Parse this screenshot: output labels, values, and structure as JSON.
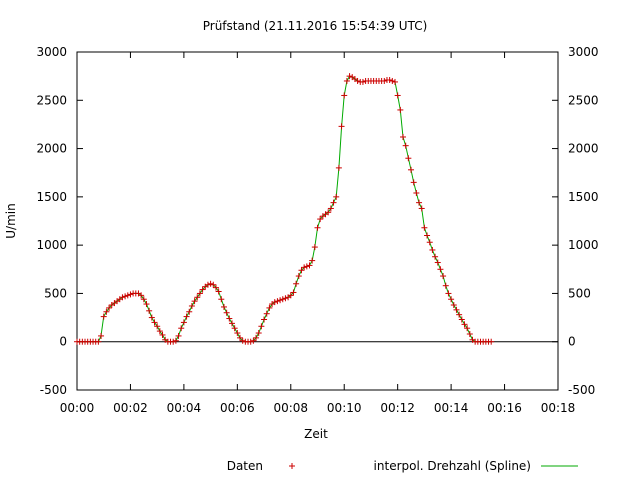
{
  "chart_data": {
    "type": "line",
    "title": "Prüfstand (21.11.2016 15:54:39 UTC)",
    "xlabel": "Zeit",
    "ylabel": "U/min",
    "xlim": [
      0,
      18
    ],
    "ylim": [
      -500,
      3000
    ],
    "x_unit": "minutes",
    "x_ticks": [
      {
        "value": 0,
        "label": "00:00"
      },
      {
        "value": 2,
        "label": "00:02"
      },
      {
        "value": 4,
        "label": "00:04"
      },
      {
        "value": 6,
        "label": "00:06"
      },
      {
        "value": 8,
        "label": "00:08"
      },
      {
        "value": 10,
        "label": "00:10"
      },
      {
        "value": 12,
        "label": "00:12"
      },
      {
        "value": 14,
        "label": "00:14"
      },
      {
        "value": 16,
        "label": "00:16"
      },
      {
        "value": 18,
        "label": "00:18"
      }
    ],
    "y_ticks": [
      {
        "value": -500,
        "label": "-500"
      },
      {
        "value": 0,
        "label": "0"
      },
      {
        "value": 500,
        "label": "500"
      },
      {
        "value": 1000,
        "label": "1000"
      },
      {
        "value": 1500,
        "label": "1500"
      },
      {
        "value": 2000,
        "label": "2000"
      },
      {
        "value": 2500,
        "label": "2500"
      },
      {
        "value": 3000,
        "label": "3000"
      }
    ],
    "grid": false,
    "zero_line": true,
    "legend_position": "bottom",
    "series": [
      {
        "name": "Daten",
        "kind": "points",
        "marker": "+",
        "color": "#cc0000",
        "points": [
          [
            0.0,
            0
          ],
          [
            0.1,
            0
          ],
          [
            0.2,
            0
          ],
          [
            0.3,
            0
          ],
          [
            0.4,
            0
          ],
          [
            0.5,
            0
          ],
          [
            0.6,
            0
          ],
          [
            0.7,
            0
          ],
          [
            0.8,
            0
          ],
          [
            0.9,
            60
          ],
          [
            1.0,
            260
          ],
          [
            1.1,
            310
          ],
          [
            1.2,
            350
          ],
          [
            1.3,
            380
          ],
          [
            1.4,
            400
          ],
          [
            1.5,
            420
          ],
          [
            1.6,
            440
          ],
          [
            1.7,
            460
          ],
          [
            1.8,
            470
          ],
          [
            1.9,
            480
          ],
          [
            2.0,
            490
          ],
          [
            2.1,
            500
          ],
          [
            2.2,
            500
          ],
          [
            2.3,
            500
          ],
          [
            2.4,
            480
          ],
          [
            2.5,
            440
          ],
          [
            2.6,
            390
          ],
          [
            2.7,
            320
          ],
          [
            2.8,
            250
          ],
          [
            2.9,
            200
          ],
          [
            3.0,
            160
          ],
          [
            3.1,
            110
          ],
          [
            3.2,
            70
          ],
          [
            3.3,
            20
          ],
          [
            3.4,
            0
          ],
          [
            3.5,
            0
          ],
          [
            3.6,
            0
          ],
          [
            3.7,
            10
          ],
          [
            3.8,
            60
          ],
          [
            3.9,
            140
          ],
          [
            4.0,
            200
          ],
          [
            4.1,
            260
          ],
          [
            4.2,
            310
          ],
          [
            4.3,
            370
          ],
          [
            4.4,
            420
          ],
          [
            4.5,
            460
          ],
          [
            4.6,
            500
          ],
          [
            4.7,
            540
          ],
          [
            4.8,
            570
          ],
          [
            4.9,
            590
          ],
          [
            5.0,
            600
          ],
          [
            5.1,
            590
          ],
          [
            5.2,
            560
          ],
          [
            5.3,
            520
          ],
          [
            5.4,
            440
          ],
          [
            5.5,
            360
          ],
          [
            5.6,
            300
          ],
          [
            5.7,
            240
          ],
          [
            5.8,
            190
          ],
          [
            5.9,
            140
          ],
          [
            6.0,
            90
          ],
          [
            6.1,
            40
          ],
          [
            6.2,
            10
          ],
          [
            6.3,
            0
          ],
          [
            6.4,
            0
          ],
          [
            6.5,
            0
          ],
          [
            6.6,
            10
          ],
          [
            6.7,
            40
          ],
          [
            6.8,
            90
          ],
          [
            6.9,
            160
          ],
          [
            7.0,
            230
          ],
          [
            7.1,
            290
          ],
          [
            7.2,
            350
          ],
          [
            7.3,
            390
          ],
          [
            7.4,
            410
          ],
          [
            7.5,
            420
          ],
          [
            7.6,
            430
          ],
          [
            7.7,
            440
          ],
          [
            7.8,
            450
          ],
          [
            7.9,
            460
          ],
          [
            8.0,
            480
          ],
          [
            8.1,
            510
          ],
          [
            8.2,
            600
          ],
          [
            8.3,
            680
          ],
          [
            8.4,
            740
          ],
          [
            8.5,
            770
          ],
          [
            8.6,
            780
          ],
          [
            8.7,
            790
          ],
          [
            8.8,
            840
          ],
          [
            8.9,
            980
          ],
          [
            9.0,
            1180
          ],
          [
            9.1,
            1270
          ],
          [
            9.2,
            1300
          ],
          [
            9.3,
            1320
          ],
          [
            9.4,
            1340
          ],
          [
            9.5,
            1380
          ],
          [
            9.6,
            1440
          ],
          [
            9.7,
            1500
          ],
          [
            9.8,
            1800
          ],
          [
            9.9,
            2230
          ],
          [
            10.0,
            2550
          ],
          [
            10.1,
            2700
          ],
          [
            10.2,
            2750
          ],
          [
            10.3,
            2740
          ],
          [
            10.4,
            2720
          ],
          [
            10.5,
            2700
          ],
          [
            10.6,
            2690
          ],
          [
            10.7,
            2690
          ],
          [
            10.8,
            2700
          ],
          [
            10.9,
            2700
          ],
          [
            11.0,
            2700
          ],
          [
            11.1,
            2700
          ],
          [
            11.2,
            2700
          ],
          [
            11.3,
            2700
          ],
          [
            11.4,
            2700
          ],
          [
            11.5,
            2700
          ],
          [
            11.6,
            2710
          ],
          [
            11.7,
            2710
          ],
          [
            11.8,
            2700
          ],
          [
            11.9,
            2690
          ],
          [
            12.0,
            2550
          ],
          [
            12.1,
            2400
          ],
          [
            12.2,
            2120
          ],
          [
            12.3,
            2030
          ],
          [
            12.4,
            1900
          ],
          [
            12.5,
            1780
          ],
          [
            12.6,
            1650
          ],
          [
            12.7,
            1540
          ],
          [
            12.8,
            1440
          ],
          [
            12.9,
            1380
          ],
          [
            13.0,
            1180
          ],
          [
            13.1,
            1100
          ],
          [
            13.2,
            1030
          ],
          [
            13.3,
            950
          ],
          [
            13.4,
            880
          ],
          [
            13.5,
            820
          ],
          [
            13.6,
            750
          ],
          [
            13.7,
            680
          ],
          [
            13.8,
            580
          ],
          [
            13.9,
            500
          ],
          [
            14.0,
            440
          ],
          [
            14.1,
            380
          ],
          [
            14.2,
            330
          ],
          [
            14.3,
            280
          ],
          [
            14.4,
            230
          ],
          [
            14.5,
            180
          ],
          [
            14.6,
            140
          ],
          [
            14.7,
            80
          ],
          [
            14.8,
            20
          ],
          [
            14.9,
            0
          ],
          [
            15.0,
            0
          ],
          [
            15.1,
            0
          ],
          [
            15.2,
            0
          ],
          [
            15.3,
            0
          ],
          [
            15.4,
            0
          ],
          [
            15.5,
            0
          ]
        ]
      },
      {
        "name": "interpol. Drehzahl (Spline)",
        "kind": "line",
        "color": "#00aa00"
      }
    ]
  }
}
